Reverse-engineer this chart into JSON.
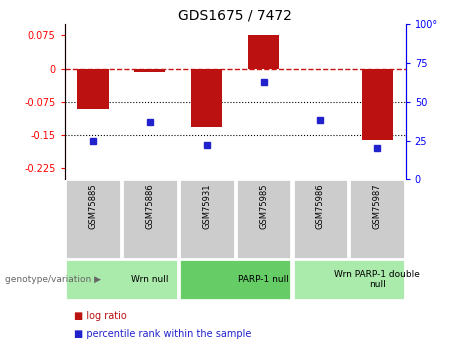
{
  "title": "GDS1675 / 7472",
  "samples": [
    "GSM75885",
    "GSM75886",
    "GSM75931",
    "GSM75985",
    "GSM75986",
    "GSM75987"
  ],
  "log_ratio": [
    -0.091,
    -0.008,
    -0.132,
    0.075,
    -0.002,
    -0.161
  ],
  "percentile": [
    25,
    37,
    22,
    63,
    38,
    20
  ],
  "ylim_left": [
    -0.25,
    0.1
  ],
  "ylim_right": [
    0,
    100
  ],
  "yticks_left": [
    0.075,
    0,
    -0.075,
    -0.15,
    -0.225
  ],
  "yticks_right": [
    100,
    75,
    50,
    25,
    0
  ],
  "hlines": [
    -0.075,
    -0.15
  ],
  "bar_color": "#bb1111",
  "dot_color": "#2222cc",
  "dashed_color": "#cc1111",
  "bar_width": 0.55,
  "groups": [
    {
      "label": "Wrn null",
      "start": 0,
      "end": 2,
      "color": "#aaeaaa"
    },
    {
      "label": "PARP-1 null",
      "start": 2,
      "end": 4,
      "color": "#66cc66"
    },
    {
      "label": "Wrn PARP-1 double\nnull",
      "start": 4,
      "end": 6,
      "color": "#aaeaaa"
    }
  ],
  "legend_entries": [
    "log ratio",
    "percentile rank within the sample"
  ],
  "genotype_label": "genotype/variation"
}
